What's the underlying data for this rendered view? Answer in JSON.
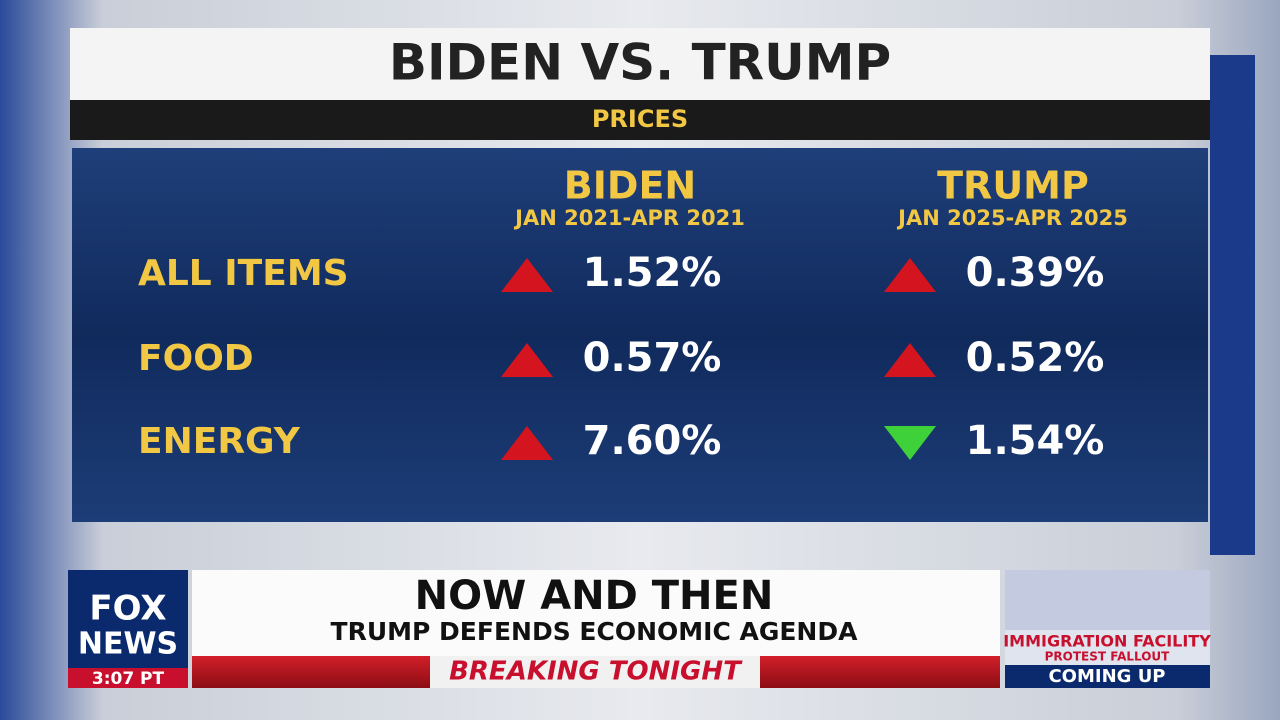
{
  "header": {
    "title": "BIDEN VS. TRUMP",
    "subtitle": "PRICES"
  },
  "table": {
    "columns": [
      {
        "name": "BIDEN",
        "period": "JAN 2021-APR 2021"
      },
      {
        "name": "TRUMP",
        "period": "JAN 2025-APR 2025"
      }
    ],
    "rows": [
      {
        "label": "ALL ITEMS",
        "cells": [
          {
            "text": "1.52%",
            "trend": "up"
          },
          {
            "text": "0.39%",
            "trend": "up"
          }
        ]
      },
      {
        "label": "FOOD",
        "cells": [
          {
            "text": "0.57%",
            "trend": "up"
          },
          {
            "text": "0.52%",
            "trend": "up"
          }
        ]
      },
      {
        "label": "ENERGY",
        "cells": [
          {
            "text": "7.60%",
            "trend": "up"
          },
          {
            "text": "1.54%",
            "trend": "down"
          }
        ]
      }
    ]
  },
  "lower_third": {
    "logo": [
      "FOX",
      "NEWS"
    ],
    "time": "3:07 PT",
    "headline": "NOW AND THEN",
    "subhead": "TRUMP DEFENDS ECONOMIC AGENDA",
    "banner": "BREAKING TONIGHT",
    "promo": {
      "title": "IMMIGRATION FACILITY",
      "subtitle": "PROTEST FALLOUT",
      "tag": "COMING UP"
    }
  }
}
